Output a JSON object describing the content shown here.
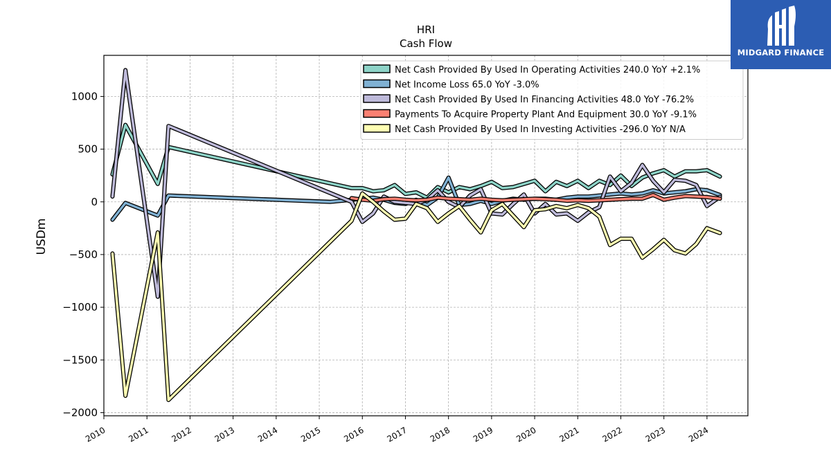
{
  "title": "HRI",
  "subtitle": "Cash Flow",
  "brand": {
    "name": "MIDGARD FINANCE",
    "color": "#2c5db3"
  },
  "chart_data": {
    "type": "line",
    "ylabel": "USDm",
    "xlabel": "",
    "ylim": [
      -2030,
      1390
    ],
    "xlim": [
      2010.0,
      2024.95
    ],
    "yticks": [
      -2000,
      -1500,
      -1000,
      -500,
      0,
      500,
      1000
    ],
    "ytick_labels": [
      "−2000",
      "−1500",
      "−1000",
      "−500",
      "0",
      "500",
      "1000"
    ],
    "xticks": [
      2010,
      2011,
      2012,
      2013,
      2014,
      2015,
      2016,
      2017,
      2018,
      2019,
      2020,
      2021,
      2022,
      2023,
      2024
    ],
    "xtick_labels": [
      "2010",
      "2011",
      "2012",
      "2013",
      "2014",
      "2015",
      "2016",
      "2017",
      "2018",
      "2019",
      "2020",
      "2021",
      "2022",
      "2023",
      "2024"
    ],
    "grid": true,
    "legend_position": "top-right",
    "series": [
      {
        "name": "Net Cash Provided By Used In Operating Activities  240.0 YoY +2.1%",
        "color": "#8dd3c7",
        "points": [
          [
            2010.2,
            260
          ],
          [
            2010.5,
            730
          ],
          [
            2011.25,
            170
          ],
          [
            2011.5,
            520
          ],
          [
            2015.75,
            130
          ],
          [
            2016.0,
            130
          ],
          [
            2016.25,
            100
          ],
          [
            2016.5,
            110
          ],
          [
            2016.75,
            160
          ],
          [
            2017.0,
            75
          ],
          [
            2017.25,
            90
          ],
          [
            2017.5,
            40
          ],
          [
            2017.75,
            140
          ],
          [
            2018.0,
            90
          ],
          [
            2018.25,
            140
          ],
          [
            2018.5,
            120
          ],
          [
            2018.75,
            150
          ],
          [
            2019.0,
            190
          ],
          [
            2019.25,
            130
          ],
          [
            2019.5,
            140
          ],
          [
            2019.75,
            170
          ],
          [
            2020.0,
            200
          ],
          [
            2020.25,
            100
          ],
          [
            2020.5,
            190
          ],
          [
            2020.75,
            150
          ],
          [
            2021.0,
            200
          ],
          [
            2021.25,
            130
          ],
          [
            2021.5,
            200
          ],
          [
            2021.75,
            160
          ],
          [
            2022.0,
            250
          ],
          [
            2022.25,
            150
          ],
          [
            2022.5,
            230
          ],
          [
            2022.75,
            270
          ],
          [
            2023.0,
            300
          ],
          [
            2023.25,
            240
          ],
          [
            2023.5,
            290
          ],
          [
            2023.75,
            290
          ],
          [
            2024.0,
            300
          ],
          [
            2024.3,
            240
          ]
        ]
      },
      {
        "name": "Net Income Loss  65.0 YoY -3.0%",
        "color": "#80b1d3",
        "points": [
          [
            2010.2,
            -170
          ],
          [
            2010.5,
            -10
          ],
          [
            2011.25,
            -130
          ],
          [
            2011.5,
            60
          ],
          [
            2015.25,
            0
          ],
          [
            2016.0,
            30
          ],
          [
            2016.25,
            40
          ],
          [
            2016.5,
            20
          ],
          [
            2016.75,
            -10
          ],
          [
            2017.0,
            -20
          ],
          [
            2017.25,
            20
          ],
          [
            2017.5,
            -30
          ],
          [
            2017.75,
            40
          ],
          [
            2018.0,
            230
          ],
          [
            2018.25,
            -30
          ],
          [
            2018.5,
            -20
          ],
          [
            2018.75,
            10
          ],
          [
            2019.0,
            -20
          ],
          [
            2019.25,
            10
          ],
          [
            2019.5,
            30
          ],
          [
            2019.75,
            20
          ],
          [
            2020.0,
            30
          ],
          [
            2020.25,
            30
          ],
          [
            2020.5,
            20
          ],
          [
            2020.75,
            40
          ],
          [
            2021.0,
            50
          ],
          [
            2021.25,
            50
          ],
          [
            2021.5,
            60
          ],
          [
            2021.75,
            70
          ],
          [
            2022.0,
            80
          ],
          [
            2022.25,
            70
          ],
          [
            2022.5,
            80
          ],
          [
            2022.75,
            110
          ],
          [
            2023.0,
            80
          ],
          [
            2023.25,
            90
          ],
          [
            2023.5,
            100
          ],
          [
            2023.75,
            120
          ],
          [
            2024.0,
            110
          ],
          [
            2024.3,
            65
          ]
        ]
      },
      {
        "name": "Net Cash Provided By Used In Financing Activities  48.0 YoY -76.2%",
        "color": "#bebada",
        "points": [
          [
            2010.2,
            50
          ],
          [
            2010.5,
            1250
          ],
          [
            2011.25,
            -900
          ],
          [
            2011.5,
            720
          ],
          [
            2015.75,
            0
          ],
          [
            2016.0,
            -190
          ],
          [
            2016.25,
            -110
          ],
          [
            2016.5,
            50
          ],
          [
            2016.75,
            0
          ],
          [
            2017.0,
            -10
          ],
          [
            2017.25,
            -20
          ],
          [
            2017.5,
            20
          ],
          [
            2017.75,
            110
          ],
          [
            2018.0,
            0
          ],
          [
            2018.25,
            -50
          ],
          [
            2018.5,
            60
          ],
          [
            2018.75,
            120
          ],
          [
            2019.0,
            -110
          ],
          [
            2019.25,
            -120
          ],
          [
            2019.5,
            -20
          ],
          [
            2019.75,
            70
          ],
          [
            2020.0,
            -110
          ],
          [
            2020.25,
            -20
          ],
          [
            2020.5,
            -120
          ],
          [
            2020.75,
            -110
          ],
          [
            2021.0,
            -180
          ],
          [
            2021.25,
            -100
          ],
          [
            2021.5,
            -50
          ],
          [
            2021.75,
            240
          ],
          [
            2022.0,
            100
          ],
          [
            2022.25,
            180
          ],
          [
            2022.5,
            350
          ],
          [
            2022.75,
            200
          ],
          [
            2023.0,
            90
          ],
          [
            2023.25,
            210
          ],
          [
            2023.5,
            200
          ],
          [
            2023.75,
            160
          ],
          [
            2024.0,
            -40
          ],
          [
            2024.3,
            48
          ]
        ]
      },
      {
        "name": "Payments To Acquire Property Plant And Equipment  30.0 YoY -9.1%",
        "color": "#fb8072",
        "points": [
          [
            2015.75,
            35
          ],
          [
            2016.0,
            20
          ],
          [
            2016.25,
            10
          ],
          [
            2016.5,
            25
          ],
          [
            2016.75,
            30
          ],
          [
            2017.0,
            20
          ],
          [
            2017.25,
            15
          ],
          [
            2017.5,
            20
          ],
          [
            2017.75,
            40
          ],
          [
            2018.0,
            30
          ],
          [
            2018.25,
            25
          ],
          [
            2018.5,
            20
          ],
          [
            2018.75,
            30
          ],
          [
            2019.0,
            20
          ],
          [
            2019.25,
            15
          ],
          [
            2019.5,
            20
          ],
          [
            2019.75,
            25
          ],
          [
            2020.0,
            30
          ],
          [
            2020.25,
            25
          ],
          [
            2020.5,
            20
          ],
          [
            2020.75,
            10
          ],
          [
            2021.0,
            15
          ],
          [
            2021.25,
            10
          ],
          [
            2021.5,
            15
          ],
          [
            2021.75,
            20
          ],
          [
            2022.0,
            25
          ],
          [
            2022.25,
            30
          ],
          [
            2022.5,
            30
          ],
          [
            2022.75,
            65
          ],
          [
            2023.0,
            20
          ],
          [
            2023.25,
            40
          ],
          [
            2023.5,
            55
          ],
          [
            2023.75,
            50
          ],
          [
            2024.0,
            45
          ],
          [
            2024.3,
            30
          ]
        ]
      },
      {
        "name": "Net Cash Provided By Used In Investing Activities  -296.0 YoY N/A",
        "color": "#ffffb3",
        "points": [
          [
            2010.2,
            -490
          ],
          [
            2010.5,
            -1840
          ],
          [
            2011.25,
            -290
          ],
          [
            2011.5,
            -1880
          ],
          [
            2015.75,
            -180
          ],
          [
            2016.0,
            80
          ],
          [
            2016.25,
            0
          ],
          [
            2016.5,
            -90
          ],
          [
            2016.75,
            -170
          ],
          [
            2017.0,
            -160
          ],
          [
            2017.25,
            -20
          ],
          [
            2017.5,
            -60
          ],
          [
            2017.75,
            -190
          ],
          [
            2018.0,
            -110
          ],
          [
            2018.25,
            -40
          ],
          [
            2018.5,
            -170
          ],
          [
            2018.75,
            -290
          ],
          [
            2019.0,
            -80
          ],
          [
            2019.25,
            -20
          ],
          [
            2019.5,
            -130
          ],
          [
            2019.75,
            -240
          ],
          [
            2020.0,
            -80
          ],
          [
            2020.25,
            -70
          ],
          [
            2020.5,
            -40
          ],
          [
            2020.75,
            -60
          ],
          [
            2021.0,
            -30
          ],
          [
            2021.25,
            -60
          ],
          [
            2021.5,
            -140
          ],
          [
            2021.75,
            -410
          ],
          [
            2022.0,
            -350
          ],
          [
            2022.25,
            -350
          ],
          [
            2022.5,
            -530
          ],
          [
            2022.75,
            -450
          ],
          [
            2023.0,
            -360
          ],
          [
            2023.25,
            -460
          ],
          [
            2023.5,
            -490
          ],
          [
            2023.75,
            -400
          ],
          [
            2024.0,
            -250
          ],
          [
            2024.3,
            -296
          ]
        ]
      }
    ]
  }
}
